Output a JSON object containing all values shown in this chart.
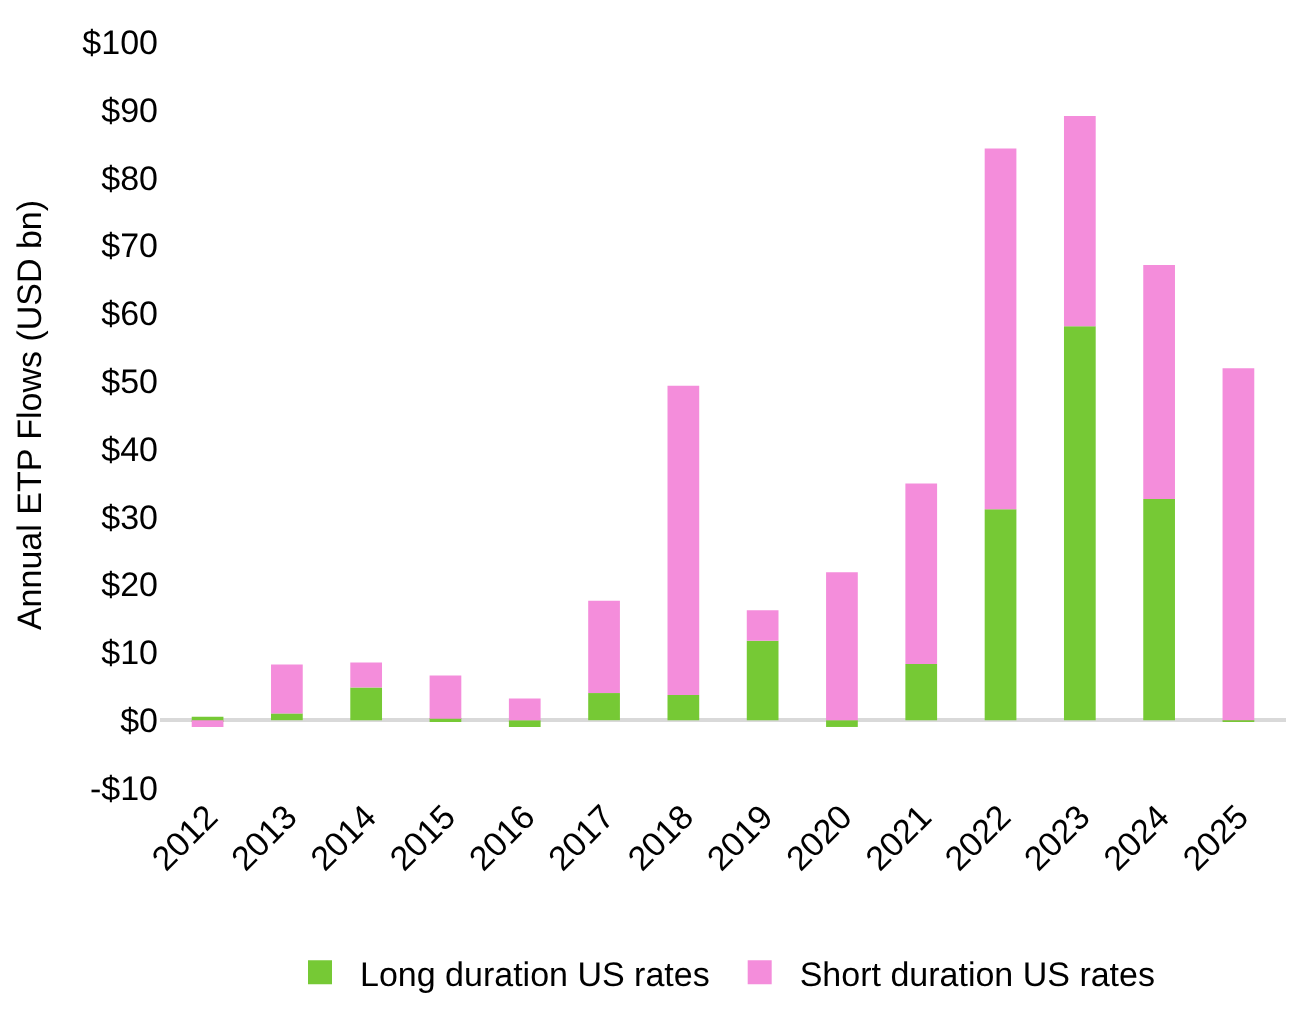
{
  "chart_data": {
    "type": "bar",
    "stacked": true,
    "ylabel": "Annual ETP Flows (USD bn)",
    "categories": [
      "2012",
      "2013",
      "2014",
      "2015",
      "2016",
      "2017",
      "2018",
      "2019",
      "2020",
      "2021",
      "2022",
      "2023",
      "2024",
      "2025"
    ],
    "series": [
      {
        "name": "Long duration US rates",
        "color": "#76c935",
        "values": [
          0.5,
          1,
          4.8,
          0.2,
          -1,
          4,
          3.7,
          11.7,
          -1,
          8.3,
          31.1,
          58.1,
          32.6,
          -0.2
        ]
      },
      {
        "name": "Short duration US rates",
        "color": "#f48ddb",
        "values": [
          -1,
          7.2,
          3.7,
          6.4,
          3.2,
          13.6,
          45.6,
          4.5,
          21.8,
          26.6,
          53.2,
          31,
          34.5,
          51.9
        ]
      }
    ],
    "ylim": [
      -10,
      100
    ],
    "yticks": [
      {
        "value": -10,
        "label": "-$10"
      },
      {
        "value": 0,
        "label": "$0"
      },
      {
        "value": 10,
        "label": "$10"
      },
      {
        "value": 20,
        "label": "$20"
      },
      {
        "value": 30,
        "label": "$30"
      },
      {
        "value": 40,
        "label": "$40"
      },
      {
        "value": 50,
        "label": "$50"
      },
      {
        "value": 60,
        "label": "$60"
      },
      {
        "value": 70,
        "label": "$70"
      },
      {
        "value": 80,
        "label": "$80"
      },
      {
        "value": 90,
        "label": "$90"
      },
      {
        "value": 100,
        "label": "$100"
      }
    ],
    "legend": "bottom"
  }
}
